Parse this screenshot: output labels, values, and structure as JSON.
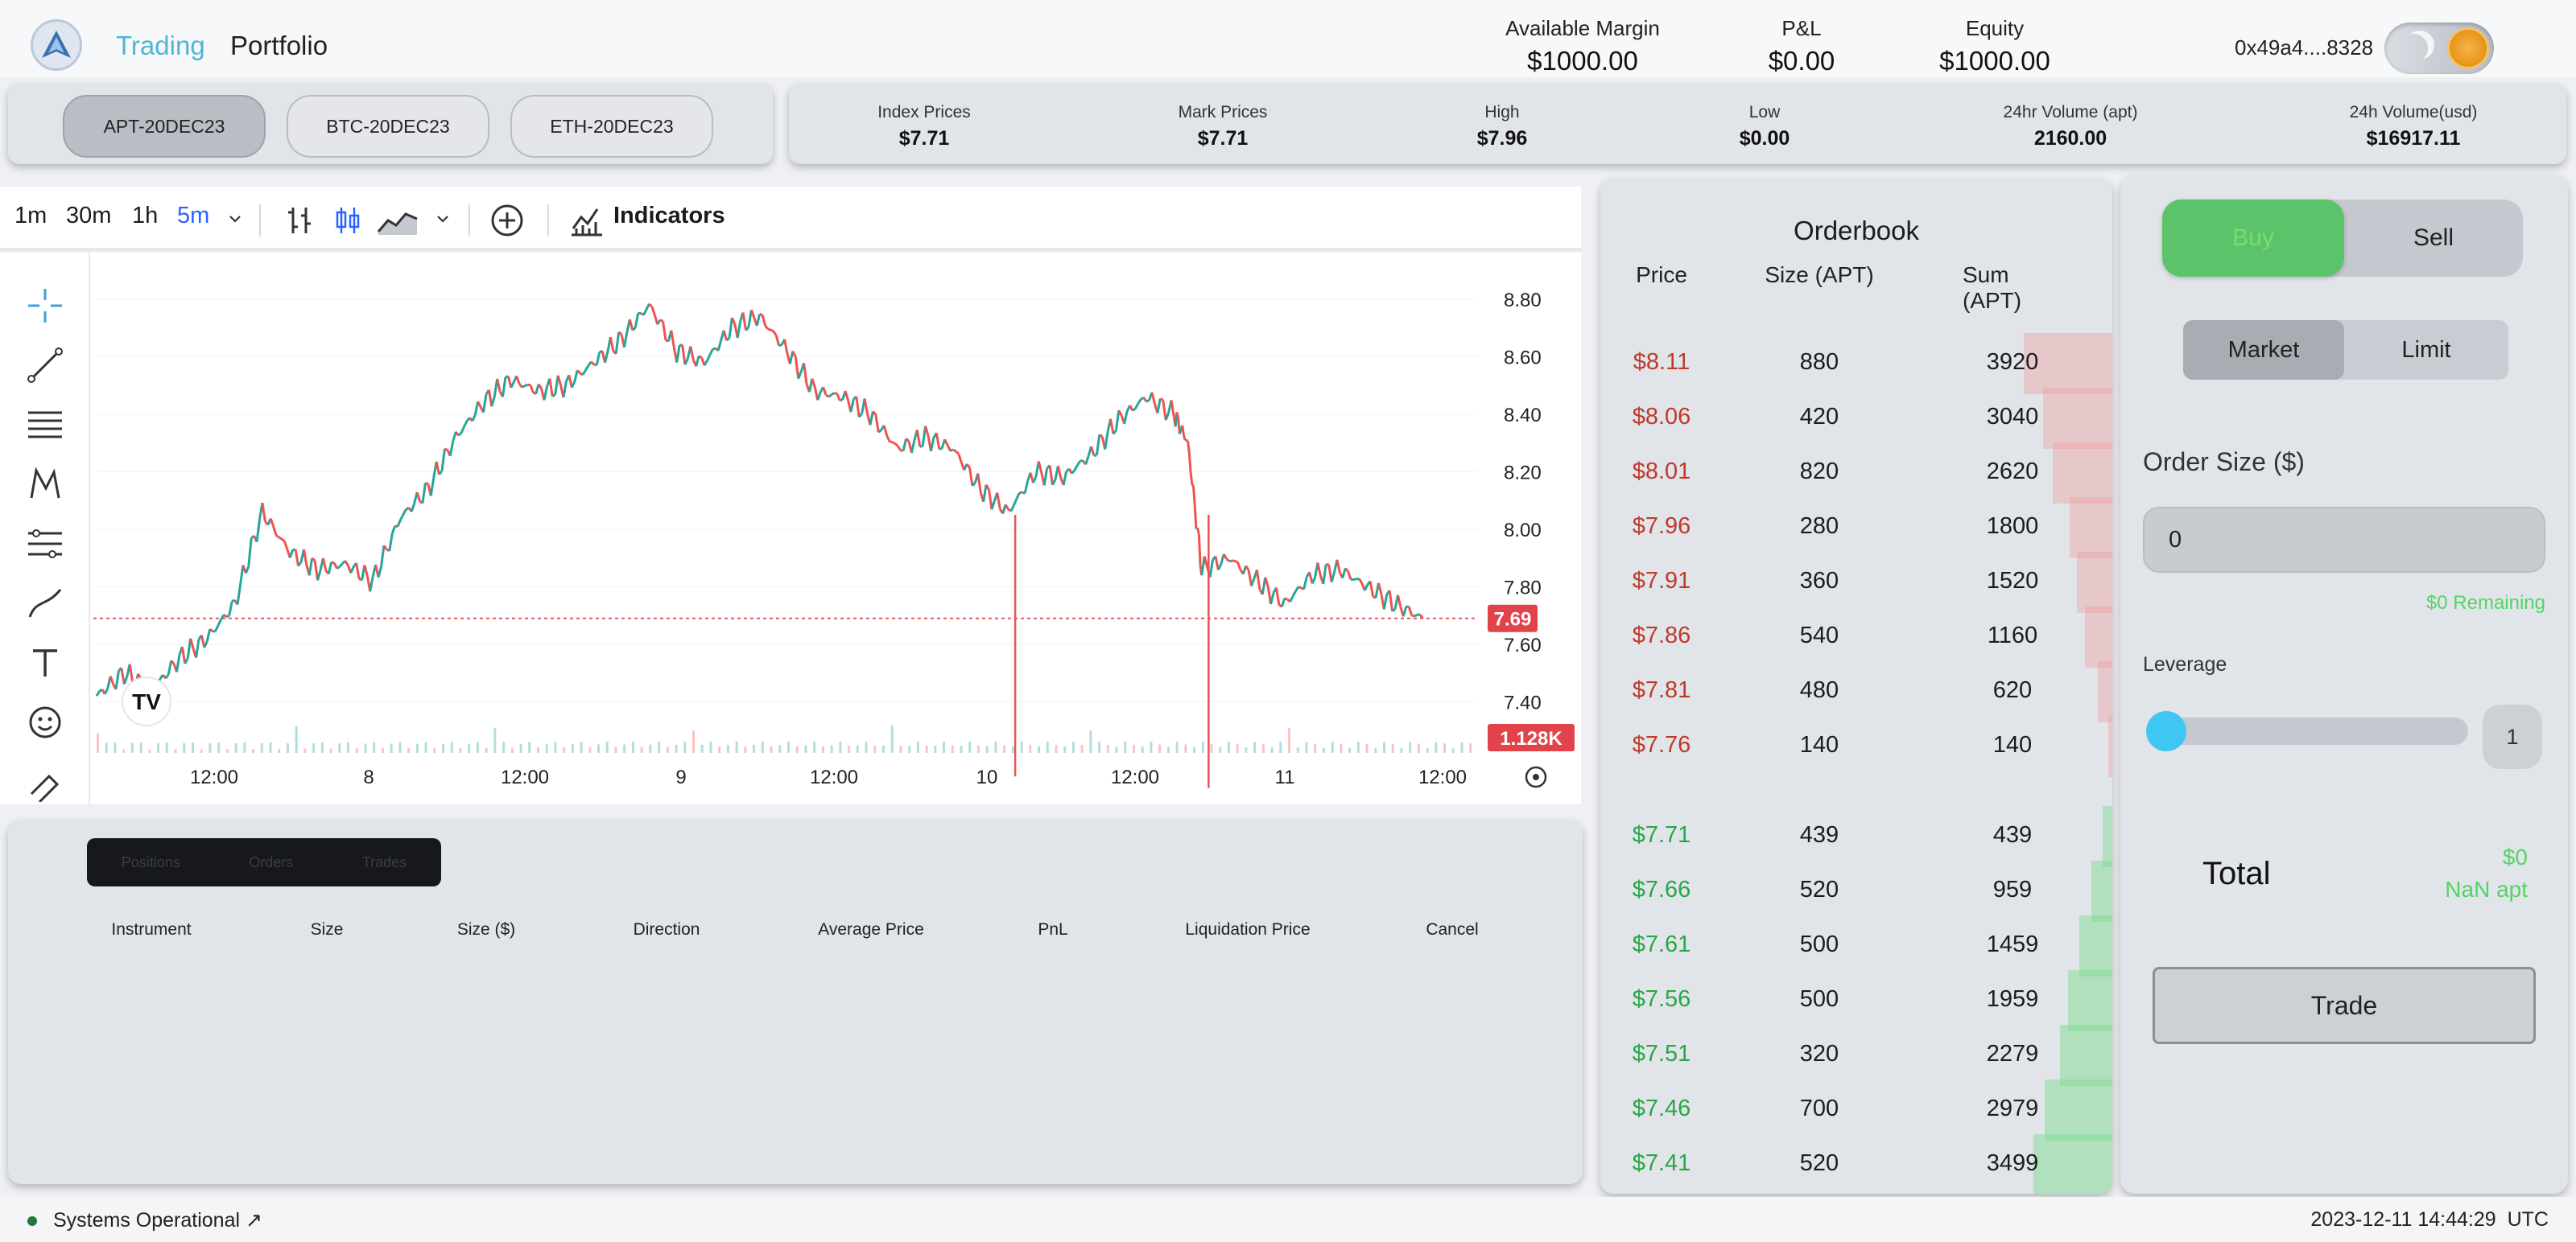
{
  "header": {
    "nav": {
      "trading": "Trading",
      "portfolio": "Portfolio"
    },
    "stats": [
      {
        "label": "Available Margin",
        "value": "$1000.00"
      },
      {
        "label": "P&L",
        "value": "$0.00"
      },
      {
        "label": "Equity",
        "value": "$1000.00"
      }
    ],
    "wallet": "0x49a4....8328"
  },
  "instruments": [
    "APT-20DEC23",
    "BTC-20DEC23",
    "ETH-20DEC23"
  ],
  "active_instrument": "APT-20DEC23",
  "prices": [
    {
      "label": "Index Prices",
      "value": "$7.71"
    },
    {
      "label": "Mark Prices",
      "value": "$7.71"
    },
    {
      "label": "High",
      "value": "$7.96"
    },
    {
      "label": "Low",
      "value": "$0.00"
    },
    {
      "label": "24hr Volume (apt)",
      "value": "2160.00"
    },
    {
      "label": "24h Volume(usd)",
      "value": "$16917.11"
    }
  ],
  "chart_toolbar": {
    "intervals": [
      "1m",
      "30m",
      "1h",
      "5m"
    ],
    "active_interval": "5m",
    "indicators": "Indicators"
  },
  "chart_data": {
    "type": "line",
    "y_ticks": [
      "8.80",
      "8.60",
      "8.40",
      "8.20",
      "8.00",
      "7.80",
      "7.60",
      "7.40"
    ],
    "x_ticks": [
      "12:00",
      "8",
      "12:00",
      "9",
      "12:00",
      "10",
      "12:00",
      "11",
      "12:00"
    ],
    "ylim": [
      7.25,
      8.85
    ],
    "last_price": "7.69",
    "volume_label": "1.128K",
    "price_path": [
      [
        0,
        7.42
      ],
      [
        0.02,
        7.5
      ],
      [
        0.04,
        7.44
      ],
      [
        0.06,
        7.55
      ],
      [
        0.08,
        7.62
      ],
      [
        0.1,
        7.74
      ],
      [
        0.12,
        8.06
      ],
      [
        0.14,
        7.92
      ],
      [
        0.16,
        7.86
      ],
      [
        0.18,
        7.88
      ],
      [
        0.2,
        7.82
      ],
      [
        0.22,
        8.04
      ],
      [
        0.24,
        8.14
      ],
      [
        0.26,
        8.32
      ],
      [
        0.28,
        8.44
      ],
      [
        0.3,
        8.52
      ],
      [
        0.32,
        8.48
      ],
      [
        0.34,
        8.5
      ],
      [
        0.36,
        8.58
      ],
      [
        0.38,
        8.66
      ],
      [
        0.4,
        8.78
      ],
      [
        0.42,
        8.62
      ],
      [
        0.44,
        8.58
      ],
      [
        0.46,
        8.7
      ],
      [
        0.48,
        8.74
      ],
      [
        0.5,
        8.62
      ],
      [
        0.52,
        8.48
      ],
      [
        0.54,
        8.46
      ],
      [
        0.56,
        8.4
      ],
      [
        0.58,
        8.28
      ],
      [
        0.6,
        8.32
      ],
      [
        0.62,
        8.28
      ],
      [
        0.64,
        8.14
      ],
      [
        0.66,
        8.06
      ],
      [
        0.68,
        8.2
      ],
      [
        0.7,
        8.18
      ],
      [
        0.72,
        8.26
      ],
      [
        0.74,
        8.38
      ],
      [
        0.76,
        8.46
      ],
      [
        0.78,
        8.4
      ],
      [
        0.79,
        8.3
      ],
      [
        0.8,
        7.86
      ],
      [
        0.82,
        7.9
      ],
      [
        0.84,
        7.82
      ],
      [
        0.86,
        7.74
      ],
      [
        0.88,
        7.84
      ],
      [
        0.9,
        7.86
      ],
      [
        0.92,
        7.8
      ],
      [
        0.94,
        7.74
      ],
      [
        0.96,
        7.69
      ]
    ],
    "spikes": [
      [
        0.665,
        7.42
      ],
      [
        0.805,
        7.38
      ]
    ]
  },
  "positions": {
    "tabs": [
      "Positions",
      "Orders",
      "Trades"
    ],
    "columns": [
      "Instrument",
      "Size",
      "Size ($)",
      "Direction",
      "Average Price",
      "PnL",
      "Liquidation Price",
      "Cancel"
    ]
  },
  "orderbook": {
    "title": "Orderbook",
    "headers": [
      "Price",
      "Size (APT)",
      "Sum (APT)"
    ],
    "asks": [
      {
        "price": "$8.11",
        "size": "880",
        "sum": "3920",
        "depth": 0.92
      },
      {
        "price": "$8.06",
        "size": "420",
        "sum": "3040",
        "depth": 0.72
      },
      {
        "price": "$8.01",
        "size": "820",
        "sum": "2620",
        "depth": 0.62
      },
      {
        "price": "$7.96",
        "size": "280",
        "sum": "1800",
        "depth": 0.44
      },
      {
        "price": "$7.91",
        "size": "360",
        "sum": "1520",
        "depth": 0.37
      },
      {
        "price": "$7.86",
        "size": "540",
        "sum": "1160",
        "depth": 0.28
      },
      {
        "price": "$7.81",
        "size": "480",
        "sum": "620",
        "depth": 0.15
      },
      {
        "price": "$7.76",
        "size": "140",
        "sum": "140",
        "depth": 0.04
      }
    ],
    "bids": [
      {
        "price": "$7.71",
        "size": "439",
        "sum": "439",
        "depth": 0.1
      },
      {
        "price": "$7.66",
        "size": "520",
        "sum": "959",
        "depth": 0.22
      },
      {
        "price": "$7.61",
        "size": "500",
        "sum": "1459",
        "depth": 0.34
      },
      {
        "price": "$7.56",
        "size": "500",
        "sum": "1959",
        "depth": 0.46
      },
      {
        "price": "$7.51",
        "size": "320",
        "sum": "2279",
        "depth": 0.54
      },
      {
        "price": "$7.46",
        "size": "700",
        "sum": "2979",
        "depth": 0.7
      },
      {
        "price": "$7.41",
        "size": "520",
        "sum": "3499",
        "depth": 0.82
      }
    ]
  },
  "trade": {
    "buy": "Buy",
    "sell": "Sell",
    "market": "Market",
    "limit": "Limit",
    "order_size_label": "Order Size ($)",
    "order_size_value": "0",
    "remaining": "$0 Remaining",
    "leverage_label": "Leverage",
    "leverage_value": "1",
    "total_label": "Total",
    "total_usd": "$0",
    "total_apt": "NaN apt",
    "trade_button": "Trade"
  },
  "footer": {
    "status": "Systems Operational",
    "datetime": "2023-12-11 14:44:29",
    "timezone": "UTC"
  },
  "colors": {
    "accent": "#4fb6d6",
    "ask": "#c0392b",
    "bid": "#27a844",
    "buy": "#5bc46a",
    "last_price_tag": "#e2424a"
  }
}
